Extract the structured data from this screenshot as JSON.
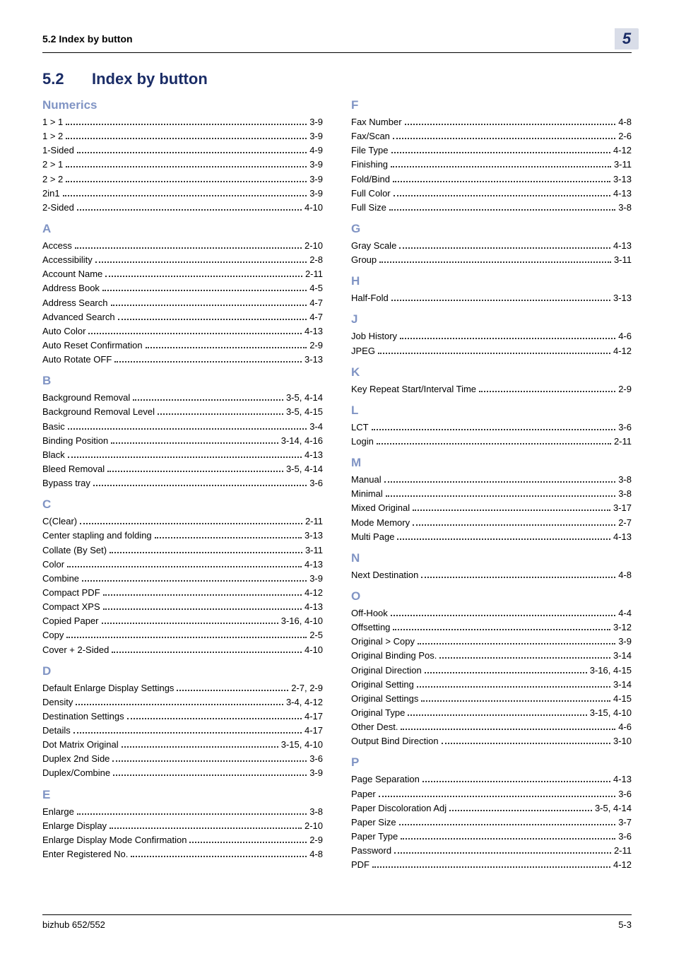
{
  "header": {
    "left": "5.2    Index by button",
    "right_number": "5"
  },
  "title": {
    "num": "5.2",
    "text": "Index by button"
  },
  "columns": {
    "left": [
      {
        "heading": "Numerics",
        "entries": [
          {
            "label": "1 > 1",
            "page": "3-9"
          },
          {
            "label": "1 > 2",
            "page": "3-9"
          },
          {
            "label": "1-Sided",
            "page": "4-9"
          },
          {
            "label": "2 > 1",
            "page": "3-9"
          },
          {
            "label": "2 > 2",
            "page": "3-9"
          },
          {
            "label": "2in1",
            "page": "3-9"
          },
          {
            "label": "2-Sided",
            "page": "4-10"
          }
        ]
      },
      {
        "heading": "A",
        "entries": [
          {
            "label": "Access",
            "page": "2-10"
          },
          {
            "label": "Accessibility",
            "page": "2-8"
          },
          {
            "label": "Account Name",
            "page": "2-11"
          },
          {
            "label": "Address Book",
            "page": "4-5"
          },
          {
            "label": "Address Search",
            "page": "4-7"
          },
          {
            "label": "Advanced Search",
            "page": "4-7"
          },
          {
            "label": "Auto Color",
            "page": "4-13"
          },
          {
            "label": "Auto Reset Confirmation",
            "page": "2-9"
          },
          {
            "label": "Auto Rotate OFF",
            "page": "3-13"
          }
        ]
      },
      {
        "heading": "B",
        "entries": [
          {
            "label": "Background Removal",
            "page": "3-5, 4-14"
          },
          {
            "label": "Background Removal Level",
            "page": "3-5, 4-15"
          },
          {
            "label": "Basic",
            "page": "3-4"
          },
          {
            "label": "Binding Position",
            "page": "3-14, 4-16"
          },
          {
            "label": "Black",
            "page": "4-13"
          },
          {
            "label": "Bleed Removal",
            "page": "3-5, 4-14"
          },
          {
            "label": "Bypass tray",
            "page": "3-6"
          }
        ]
      },
      {
        "heading": "C",
        "entries": [
          {
            "label": "C(Clear)",
            "page": "2-11"
          },
          {
            "label": "Center stapling and folding",
            "page": "3-13"
          },
          {
            "label": "Collate (By Set)",
            "page": "3-11"
          },
          {
            "label": "Color",
            "page": "4-13"
          },
          {
            "label": "Combine",
            "page": "3-9"
          },
          {
            "label": "Compact PDF",
            "page": "4-12"
          },
          {
            "label": "Compact XPS",
            "page": "4-13"
          },
          {
            "label": "Copied Paper",
            "page": "3-16, 4-10"
          },
          {
            "label": "Copy",
            "page": "2-5"
          },
          {
            "label": "Cover + 2-Sided",
            "page": "4-10"
          }
        ]
      },
      {
        "heading": "D",
        "entries": [
          {
            "label": "Default Enlarge Display Settings",
            "page": "2-7, 2-9"
          },
          {
            "label": "Density",
            "page": "3-4, 4-12"
          },
          {
            "label": "Destination Settings",
            "page": "4-17"
          },
          {
            "label": "Details",
            "page": "4-17"
          },
          {
            "label": "Dot Matrix Original",
            "page": "3-15, 4-10"
          },
          {
            "label": "Duplex 2nd Side",
            "page": "3-6"
          },
          {
            "label": "Duplex/Combine",
            "page": "3-9"
          }
        ]
      },
      {
        "heading": "E",
        "entries": [
          {
            "label": "Enlarge",
            "page": "3-8"
          },
          {
            "label": "Enlarge Display",
            "page": "2-10"
          },
          {
            "label": "Enlarge Display Mode Confirmation",
            "page": "2-9"
          },
          {
            "label": "Enter Registered No.",
            "page": "4-8"
          }
        ]
      }
    ],
    "right": [
      {
        "heading": "F",
        "entries": [
          {
            "label": "Fax Number",
            "page": "4-8"
          },
          {
            "label": "Fax/Scan",
            "page": "2-6"
          },
          {
            "label": "File Type",
            "page": "4-12"
          },
          {
            "label": "Finishing",
            "page": "3-11"
          },
          {
            "label": "Fold/Bind",
            "page": "3-13"
          },
          {
            "label": "Full Color",
            "page": "4-13"
          },
          {
            "label": "Full Size",
            "page": "3-8"
          }
        ]
      },
      {
        "heading": "G",
        "entries": [
          {
            "label": "Gray Scale",
            "page": "4-13"
          },
          {
            "label": "Group",
            "page": "3-11"
          }
        ]
      },
      {
        "heading": "H",
        "entries": [
          {
            "label": "Half-Fold",
            "page": "3-13"
          }
        ]
      },
      {
        "heading": "J",
        "entries": [
          {
            "label": "Job History",
            "page": "4-6"
          },
          {
            "label": "JPEG",
            "page": "4-12"
          }
        ]
      },
      {
        "heading": "K",
        "entries": [
          {
            "label": "Key Repeat Start/Interval Time",
            "page": "2-9"
          }
        ]
      },
      {
        "heading": "L",
        "entries": [
          {
            "label": "LCT",
            "page": "3-6"
          },
          {
            "label": "Login",
            "page": "2-11"
          }
        ]
      },
      {
        "heading": "M",
        "entries": [
          {
            "label": "Manual",
            "page": "3-8"
          },
          {
            "label": "Minimal",
            "page": "3-8"
          },
          {
            "label": "Mixed Original",
            "page": "3-17"
          },
          {
            "label": "Mode Memory",
            "page": "2-7"
          },
          {
            "label": "Multi Page",
            "page": "4-13"
          }
        ]
      },
      {
        "heading": "N",
        "entries": [
          {
            "label": "Next Destination",
            "page": "4-8"
          }
        ]
      },
      {
        "heading": "O",
        "entries": [
          {
            "label": "Off-Hook",
            "page": "4-4"
          },
          {
            "label": "Offsetting",
            "page": "3-12"
          },
          {
            "label": "Original > Copy",
            "page": "3-9"
          },
          {
            "label": "Original Binding Pos.",
            "page": "3-14"
          },
          {
            "label": "Original Direction",
            "page": "3-16, 4-15"
          },
          {
            "label": "Original Setting",
            "page": "3-14"
          },
          {
            "label": "Original Settings",
            "page": "4-15"
          },
          {
            "label": "Original Type",
            "page": "3-15, 4-10"
          },
          {
            "label": "Other Dest.",
            "page": "4-6"
          },
          {
            "label": "Output Bind Direction",
            "page": "3-10"
          }
        ]
      },
      {
        "heading": "P",
        "entries": [
          {
            "label": "Page Separation",
            "page": "4-13"
          },
          {
            "label": "Paper",
            "page": "3-6"
          },
          {
            "label": "Paper Discoloration Adj",
            "page": "3-5, 4-14"
          },
          {
            "label": "Paper Size",
            "page": "3-7"
          },
          {
            "label": "Paper Type",
            "page": "3-6"
          },
          {
            "label": "Password",
            "page": "2-11"
          },
          {
            "label": "PDF",
            "page": "4-12"
          }
        ]
      }
    ]
  },
  "footer": {
    "left": "bizhub 652/552",
    "right": "5-3"
  },
  "colors": {
    "heading_blue": "#1a2c66",
    "letter_muted_blue": "#8094c4",
    "chapter_box_bg": "#d9dde8"
  }
}
